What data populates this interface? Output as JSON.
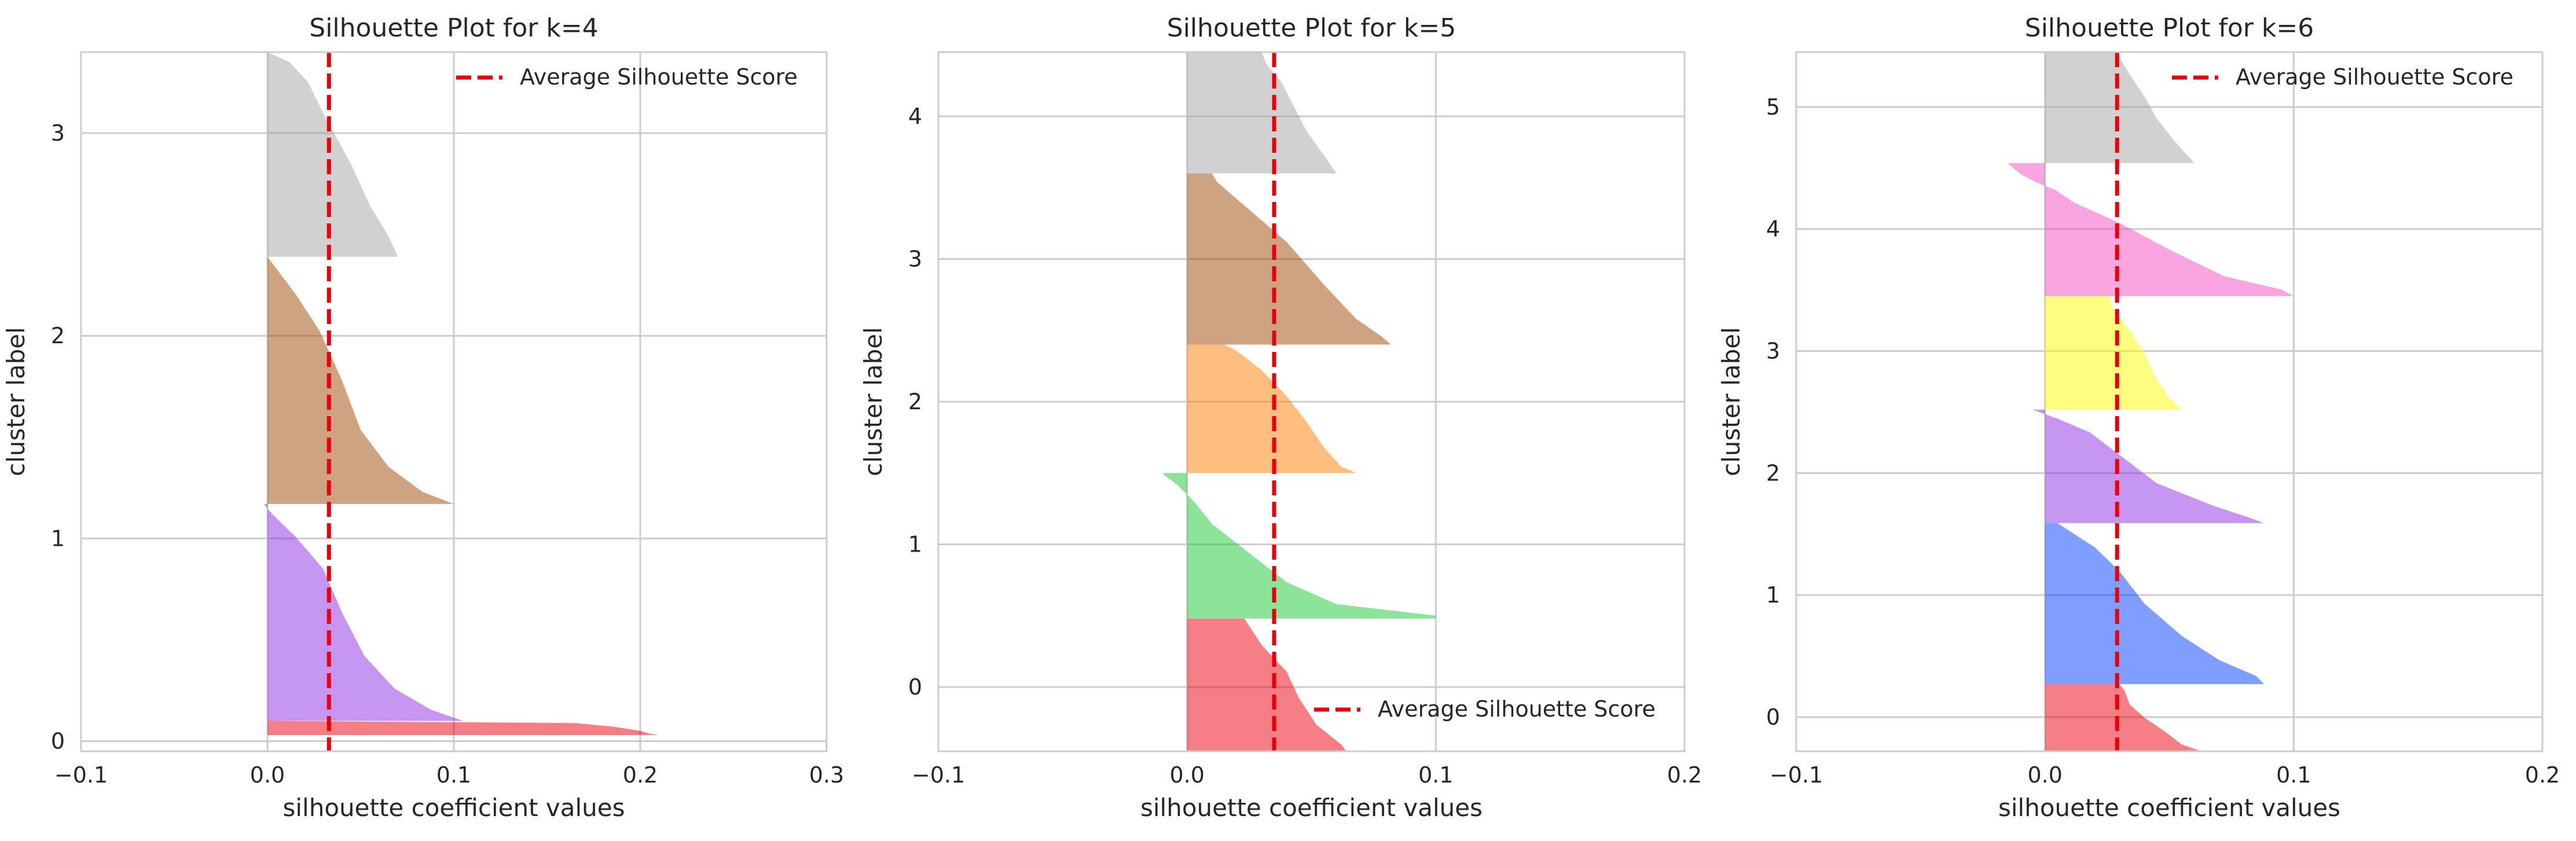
{
  "figure": {
    "avg_line_color": "#e8000b",
    "grid_color": "#cccccc",
    "frame_color": "#cccccc"
  },
  "chart_data": [
    {
      "type": "silhouette",
      "title": "Silhouette Plot for k=4",
      "xlabel": "silhouette coefficient values",
      "ylabel": "cluster label",
      "xlim": [
        -0.1,
        0.3
      ],
      "xticks": [
        -0.1,
        0.0,
        0.1,
        0.2,
        0.3
      ],
      "xtick_labels": [
        "−0.1",
        "0.0",
        "0.1",
        "0.2",
        "0.3"
      ],
      "ylim": [
        -0.05,
        3.4
      ],
      "yticks": [
        0,
        1,
        2,
        3
      ],
      "ytick_labels": [
        "0",
        "1",
        "2",
        "3"
      ],
      "grid": true,
      "average_silhouette_score": 0.033,
      "legend": {
        "label": "Average Silhouette Score",
        "position": "upper right"
      },
      "clusters": [
        {
          "label": "0",
          "color": "#e8000b",
          "y_range": [
            0.03,
            0.1
          ],
          "profile": [
            [
              0,
              0.21
            ],
            [
              0.1,
              0.205
            ],
            [
              0.3,
              0.2
            ],
            [
              0.6,
              0.185
            ],
            [
              0.85,
              0.165
            ],
            [
              1,
              0.0
            ]
          ]
        },
        {
          "label": "1",
          "color": "#8b2be2",
          "y_range": [
            0.1,
            1.17
          ],
          "profile": [
            [
              0,
              0.105
            ],
            [
              0.05,
              0.088
            ],
            [
              0.15,
              0.068
            ],
            [
              0.3,
              0.052
            ],
            [
              0.5,
              0.04
            ],
            [
              0.7,
              0.03
            ],
            [
              0.85,
              0.015
            ],
            [
              0.95,
              0.003
            ],
            [
              1,
              -0.002
            ]
          ]
        },
        {
          "label": "2",
          "color": "#9f4800",
          "y_range": [
            1.17,
            2.39
          ],
          "profile": [
            [
              0,
              0.1
            ],
            [
              0.05,
              0.083
            ],
            [
              0.15,
              0.065
            ],
            [
              0.3,
              0.05
            ],
            [
              0.5,
              0.04
            ],
            [
              0.7,
              0.028
            ],
            [
              0.85,
              0.015
            ],
            [
              1,
              0.0
            ]
          ]
        },
        {
          "label": "3",
          "color": "#a3a3a3",
          "y_range": [
            2.39,
            3.4
          ],
          "profile": [
            [
              0,
              0.07
            ],
            [
              0.1,
              0.065
            ],
            [
              0.25,
              0.055
            ],
            [
              0.45,
              0.045
            ],
            [
              0.7,
              0.03
            ],
            [
              0.85,
              0.022
            ],
            [
              0.95,
              0.012
            ],
            [
              1,
              0.0
            ]
          ]
        }
      ]
    },
    {
      "type": "silhouette",
      "title": "Silhouette Plot for k=5",
      "xlabel": "silhouette coefficient values",
      "ylabel": "cluster label",
      "xlim": [
        -0.1,
        0.2
      ],
      "xticks": [
        -0.1,
        0.0,
        0.1,
        0.2
      ],
      "xtick_labels": [
        "−0.1",
        "0.0",
        "0.1",
        "0.2"
      ],
      "ylim": [
        -0.45,
        4.45
      ],
      "yticks": [
        0,
        1,
        2,
        3,
        4
      ],
      "ytick_labels": [
        "0",
        "1",
        "2",
        "3",
        "4"
      ],
      "grid": true,
      "average_silhouette_score": 0.035,
      "legend": {
        "label": "Average Silhouette Score",
        "position": "lower right"
      },
      "clusters": [
        {
          "label": "0",
          "color": "#e8000b",
          "y_range": [
            -0.45,
            0.48
          ],
          "profile": [
            [
              0,
              0.064
            ],
            [
              0.05,
              0.062
            ],
            [
              0.2,
              0.052
            ],
            [
              0.4,
              0.045
            ],
            [
              0.6,
              0.04
            ],
            [
              0.8,
              0.03
            ],
            [
              1,
              0.023
            ]
          ]
        },
        {
          "label": "1",
          "color": "#1ac938",
          "y_range": [
            0.48,
            1.5
          ],
          "profile": [
            [
              0,
              0.1
            ],
            [
              0.02,
              0.1
            ],
            [
              0.1,
              0.06
            ],
            [
              0.25,
              0.04
            ],
            [
              0.45,
              0.025
            ],
            [
              0.65,
              0.01
            ],
            [
              0.8,
              0.003
            ],
            [
              0.92,
              -0.004
            ],
            [
              0.97,
              -0.008
            ],
            [
              1,
              -0.01
            ]
          ]
        },
        {
          "label": "2",
          "color": "#ff7c00",
          "y_range": [
            1.5,
            2.4
          ],
          "profile": [
            [
              0,
              0.068
            ],
            [
              0.05,
              0.062
            ],
            [
              0.2,
              0.055
            ],
            [
              0.4,
              0.048
            ],
            [
              0.6,
              0.04
            ],
            [
              0.8,
              0.03
            ],
            [
              0.95,
              0.02
            ],
            [
              1,
              0.015
            ]
          ]
        },
        {
          "label": "3",
          "color": "#9f4800",
          "y_range": [
            2.4,
            3.6
          ],
          "profile": [
            [
              0,
              0.082
            ],
            [
              0.05,
              0.078
            ],
            [
              0.15,
              0.068
            ],
            [
              0.35,
              0.055
            ],
            [
              0.6,
              0.04
            ],
            [
              0.85,
              0.02
            ],
            [
              0.95,
              0.012
            ],
            [
              1,
              0.01
            ]
          ]
        },
        {
          "label": "4",
          "color": "#a3a3a3",
          "y_range": [
            3.6,
            4.45
          ],
          "profile": [
            [
              0,
              0.06
            ],
            [
              0.15,
              0.055
            ],
            [
              0.35,
              0.048
            ],
            [
              0.55,
              0.043
            ],
            [
              0.75,
              0.038
            ],
            [
              0.9,
              0.032
            ],
            [
              1,
              0.03
            ]
          ]
        }
      ]
    },
    {
      "type": "silhouette",
      "title": "Silhouette Plot for k=6",
      "xlabel": "silhouette coefficient values",
      "ylabel": "cluster label",
      "xlim": [
        -0.1,
        0.2
      ],
      "xticks": [
        -0.1,
        0.0,
        0.1,
        0.2
      ],
      "xtick_labels": [
        "−0.1",
        "0.0",
        "0.1",
        "0.2"
      ],
      "ylim": [
        -0.28,
        5.45
      ],
      "yticks": [
        0,
        1,
        2,
        3,
        4,
        5
      ],
      "ytick_labels": [
        "0",
        "1",
        "2",
        "3",
        "4",
        "5"
      ],
      "grid": true,
      "average_silhouette_score": 0.029,
      "legend": {
        "label": "Average Silhouette Score",
        "position": "upper right"
      },
      "clusters": [
        {
          "label": "0",
          "color": "#e8000b",
          "y_range": [
            -0.28,
            0.27
          ],
          "profile": [
            [
              0,
              0.063
            ],
            [
              0.1,
              0.055
            ],
            [
              0.3,
              0.048
            ],
            [
              0.5,
              0.04
            ],
            [
              0.7,
              0.034
            ],
            [
              0.9,
              0.032
            ],
            [
              1,
              0.03
            ]
          ]
        },
        {
          "label": "1",
          "color": "#023eff",
          "y_range": [
            0.27,
            1.59
          ],
          "profile": [
            [
              0,
              0.088
            ],
            [
              0.05,
              0.085
            ],
            [
              0.15,
              0.07
            ],
            [
              0.3,
              0.055
            ],
            [
              0.5,
              0.04
            ],
            [
              0.7,
              0.03
            ],
            [
              0.85,
              0.02
            ],
            [
              0.95,
              0.01
            ],
            [
              1,
              0.005
            ]
          ]
        },
        {
          "label": "2",
          "color": "#8b2be2",
          "y_range": [
            1.59,
            2.52
          ],
          "profile": [
            [
              0,
              0.088
            ],
            [
              0.05,
              0.082
            ],
            [
              0.15,
              0.068
            ],
            [
              0.35,
              0.045
            ],
            [
              0.6,
              0.03
            ],
            [
              0.8,
              0.018
            ],
            [
              0.92,
              0.005
            ],
            [
              1,
              -0.005
            ]
          ]
        },
        {
          "label": "3",
          "color": "#fffc00",
          "y_range": [
            2.52,
            3.45
          ],
          "profile": [
            [
              0,
              0.055
            ],
            [
              0.1,
              0.05
            ],
            [
              0.3,
              0.044
            ],
            [
              0.5,
              0.04
            ],
            [
              0.7,
              0.034
            ],
            [
              0.9,
              0.027
            ],
            [
              1,
              0.026
            ]
          ]
        },
        {
          "label": "4",
          "color": "#f14cc1",
          "y_range": [
            3.45,
            4.54
          ],
          "profile": [
            [
              0,
              0.1
            ],
            [
              0.05,
              0.095
            ],
            [
              0.15,
              0.072
            ],
            [
              0.35,
              0.05
            ],
            [
              0.55,
              0.03
            ],
            [
              0.7,
              0.012
            ],
            [
              0.8,
              0.004
            ],
            [
              0.85,
              -0.003
            ],
            [
              0.92,
              -0.01
            ],
            [
              1,
              -0.015
            ]
          ]
        },
        {
          "label": "5",
          "color": "#a3a3a3",
          "y_range": [
            4.54,
            5.45
          ],
          "profile": [
            [
              0,
              0.06
            ],
            [
              0.2,
              0.052
            ],
            [
              0.4,
              0.045
            ],
            [
              0.6,
              0.04
            ],
            [
              0.8,
              0.034
            ],
            [
              0.95,
              0.03
            ],
            [
              1,
              0.028
            ]
          ]
        }
      ]
    }
  ]
}
